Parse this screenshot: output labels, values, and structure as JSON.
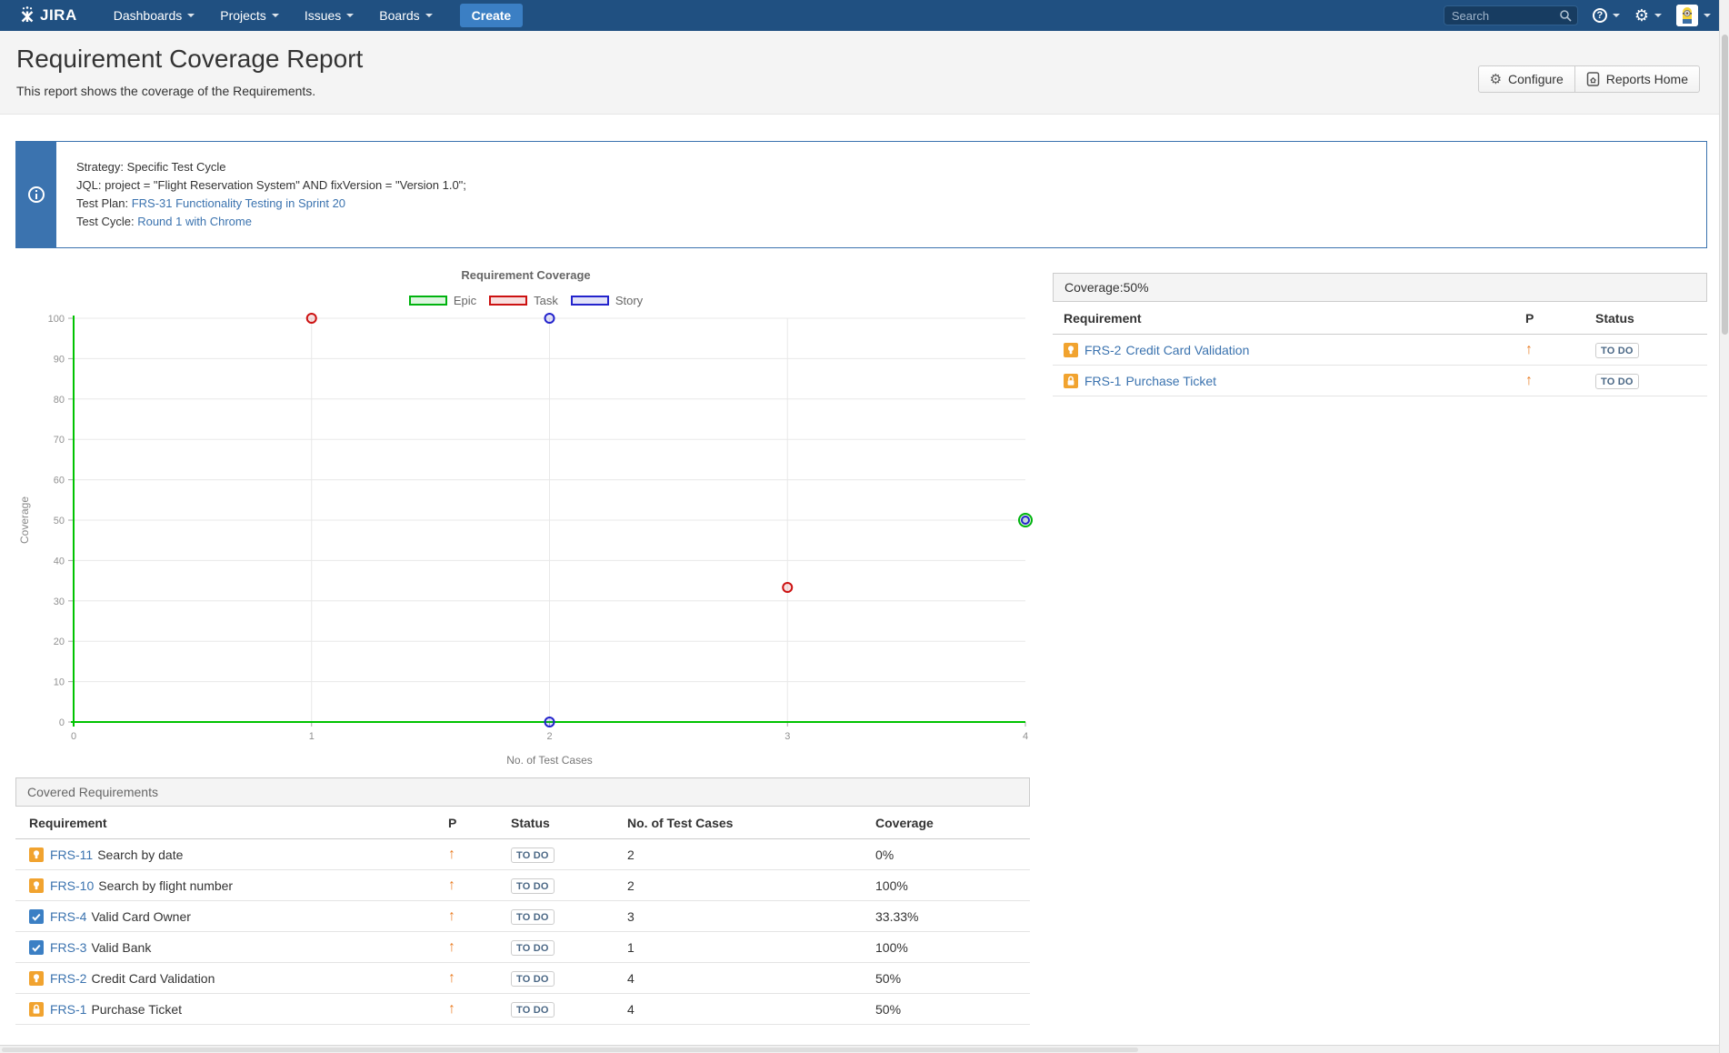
{
  "nav": {
    "logo_text": "JIRA",
    "items": [
      {
        "label": "Dashboards"
      },
      {
        "label": "Projects"
      },
      {
        "label": "Issues"
      },
      {
        "label": "Boards"
      }
    ],
    "create_label": "Create",
    "search_placeholder": "Search"
  },
  "header": {
    "title": "Requirement Coverage Report",
    "subtitle": "This report shows the coverage of the Requirements.",
    "configure_label": "Configure",
    "reports_home_label": "Reports Home"
  },
  "info_panel": {
    "lines": [
      {
        "label": "Strategy:",
        "value": "Specific Test Cycle"
      },
      {
        "label": "JQL:",
        "value": "project = \"Flight Reservation System\" AND fixVersion = \"Version 1.0\";"
      },
      {
        "label": "Test Plan:",
        "value": "FRS-31 Functionality Testing in Sprint 20"
      },
      {
        "label": "Test Cycle:",
        "value": "Round 1 with Chrome"
      }
    ]
  },
  "chart_data": {
    "type": "scatter",
    "title": "Requirement Coverage",
    "xlabel": "No. of Test Cases",
    "ylabel": "Coverage",
    "xlim": [
      0,
      4
    ],
    "ylim": [
      0,
      100
    ],
    "x_ticks": [
      0,
      1,
      2,
      3,
      4
    ],
    "y_ticks": [
      0,
      10,
      20,
      30,
      40,
      50,
      60,
      70,
      80,
      90,
      100
    ],
    "grid": true,
    "legend_position": "top",
    "axis_color": "#00c300",
    "series": [
      {
        "name": "Epic",
        "color": "#00b30f",
        "points": [
          {
            "x": 4,
            "y": 50
          }
        ]
      },
      {
        "name": "Task",
        "color": "#cc1111",
        "points": [
          {
            "x": 1,
            "y": 100
          },
          {
            "x": 3,
            "y": 33.33
          }
        ]
      },
      {
        "name": "Story",
        "color": "#2323cc",
        "points": [
          {
            "x": 2,
            "y": 100
          },
          {
            "x": 2,
            "y": 0
          },
          {
            "x": 4,
            "y": 50
          }
        ]
      }
    ]
  },
  "coverage_panel": {
    "header": "Coverage:50%",
    "columns": [
      "Requirement",
      "P",
      "Status"
    ],
    "rows": [
      {
        "icon": "story",
        "key": "FRS-2",
        "summary": "Credit Card Validation",
        "priority": "up",
        "status": "TO DO"
      },
      {
        "icon": "epic",
        "key": "FRS-1",
        "summary": "Purchase Ticket",
        "priority": "up",
        "status": "TO DO"
      }
    ]
  },
  "covered_requirements": {
    "header": "Covered Requirements",
    "columns": [
      "Requirement",
      "P",
      "Status",
      "No. of Test Cases",
      "Coverage"
    ],
    "rows": [
      {
        "icon": "story",
        "key": "FRS-11",
        "summary": "Search by date",
        "priority": "up",
        "status": "TO DO",
        "test_cases": "2",
        "coverage": "0%"
      },
      {
        "icon": "story",
        "key": "FRS-10",
        "summary": "Search by flight number",
        "priority": "up",
        "status": "TO DO",
        "test_cases": "2",
        "coverage": "100%"
      },
      {
        "icon": "task",
        "key": "FRS-4",
        "summary": "Valid Card Owner",
        "priority": "up",
        "status": "TO DO",
        "test_cases": "3",
        "coverage": "33.33%"
      },
      {
        "icon": "task",
        "key": "FRS-3",
        "summary": "Valid Bank",
        "priority": "up",
        "status": "TO DO",
        "test_cases": "1",
        "coverage": "100%"
      },
      {
        "icon": "story",
        "key": "FRS-2",
        "summary": "Credit Card Validation",
        "priority": "up",
        "status": "TO DO",
        "test_cases": "4",
        "coverage": "50%"
      },
      {
        "icon": "epic",
        "key": "FRS-1",
        "summary": "Purchase Ticket",
        "priority": "up",
        "status": "TO DO",
        "test_cases": "4",
        "coverage": "50%"
      }
    ]
  },
  "colors": {
    "nav_bg": "#205081",
    "create_button": "#3b7fc4",
    "link": "#3b73af",
    "info_border": "#3b73af",
    "priority_orange": "#ea7d24",
    "status_text": "#4a6785",
    "task_icon": "#3b7fc4",
    "story_icon": "#f1a32f",
    "epic_icon": "#f1a32f",
    "epic_point": "#00b30f",
    "task_point": "#cc1111",
    "story_point": "#2323cc"
  }
}
